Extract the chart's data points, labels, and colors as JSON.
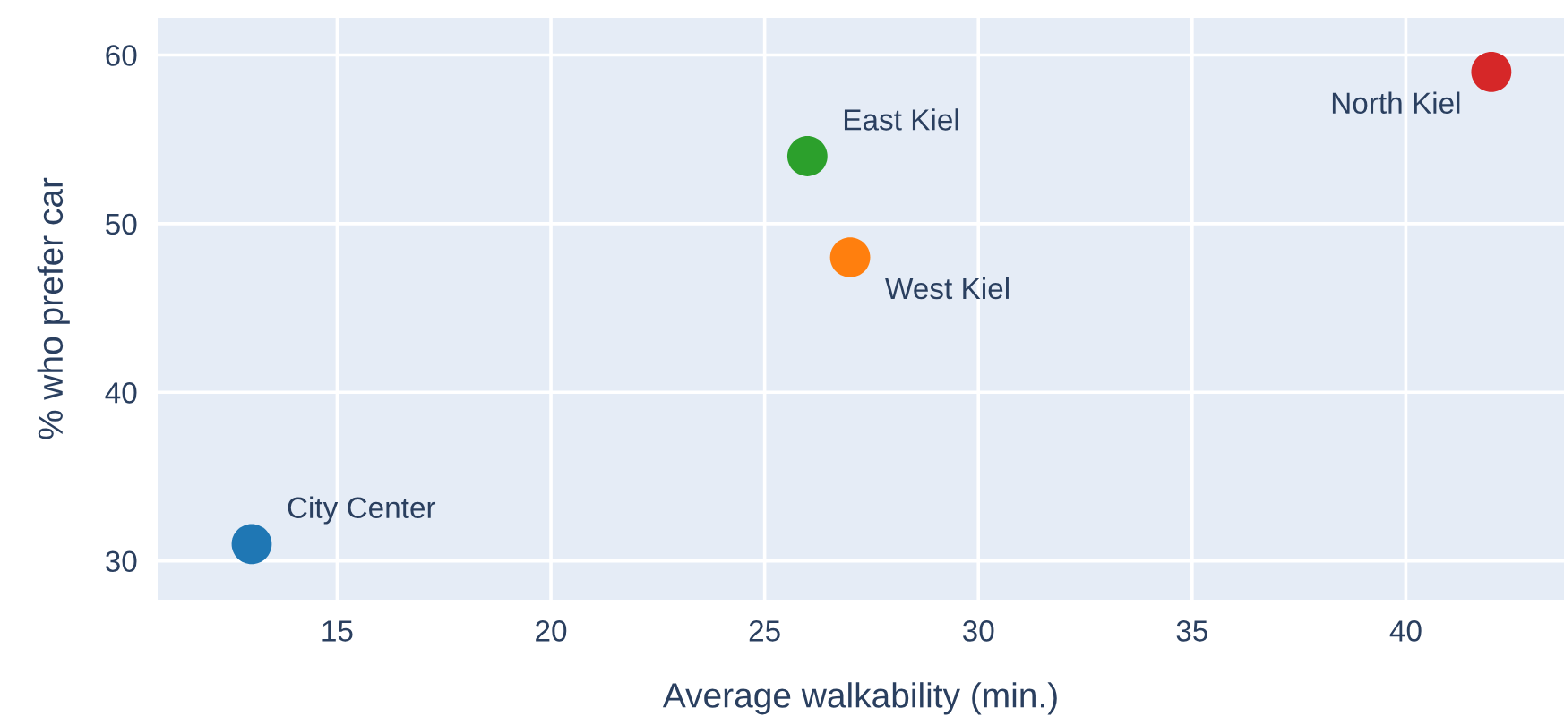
{
  "chart_data": {
    "type": "scatter",
    "xlabel": "Average walkability (min.)",
    "ylabel": "% who prefer car",
    "x": [
      13,
      26,
      27,
      42
    ],
    "values": [
      31,
      54,
      48,
      59
    ],
    "colors": [
      "#1f77b4",
      "#2ca02c",
      "#ff7f0e",
      "#d62728"
    ],
    "annotations": [
      {
        "text": "City Center",
        "x": 13,
        "y": 31
      },
      {
        "text": "East Kiel",
        "x": 26,
        "y": 54
      },
      {
        "text": "West Kiel",
        "x": 27,
        "y": 48
      },
      {
        "text": "North Kiel",
        "x": 42,
        "y": 59
      }
    ],
    "xlim": [
      10.8,
      43.7
    ],
    "ylim": [
      27.7,
      62.2
    ],
    "xticks": [
      15,
      20,
      25,
      30,
      35,
      40
    ],
    "yticks": [
      30,
      40,
      50,
      60
    ],
    "grid": true,
    "marker": "circle"
  }
}
